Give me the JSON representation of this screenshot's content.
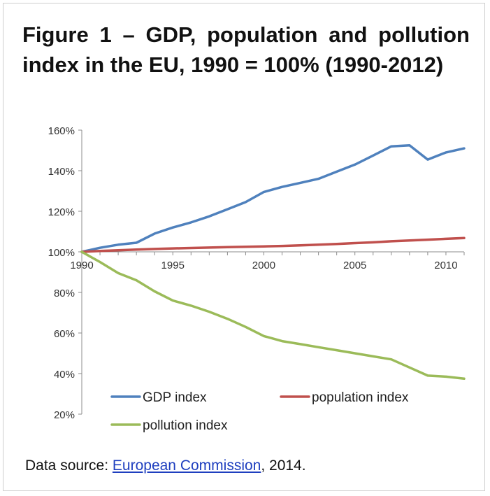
{
  "chart_data": {
    "type": "line",
    "title": "Figure 1 – GDP, population and pollution index in the EU, 1990 = 100% (1990-2012)",
    "x_ticks": [
      1990,
      1995,
      2000,
      2005,
      2010
    ],
    "y_tick_labels": [
      "160%",
      "140%",
      "120%",
      "100%",
      "80%",
      "60%",
      "40%",
      "20%"
    ],
    "ylim": [
      20,
      160
    ],
    "xlim": [
      1990,
      2011
    ],
    "legend_position": "bottom-inside",
    "series": [
      {
        "name": "GDP index",
        "color": "#4f81bd",
        "x": [
          1990,
          1991,
          1992,
          1993,
          1994,
          1995,
          1996,
          1997,
          1998,
          1999,
          2000,
          2001,
          2002,
          2003,
          2004,
          2005,
          2006,
          2007,
          2008,
          2009,
          2010,
          2011
        ],
        "values": [
          100,
          102,
          103.5,
          104.5,
          109,
          112,
          114.5,
          117.5,
          121,
          124.5,
          129.5,
          132,
          134,
          136,
          139.5,
          143,
          147.5,
          152,
          152.5,
          145.5,
          149,
          151
        ]
      },
      {
        "name": "population index",
        "color": "#c0504d",
        "x": [
          1990,
          1991,
          1992,
          1993,
          1994,
          1995,
          1996,
          1997,
          1998,
          1999,
          2000,
          2001,
          2002,
          2003,
          2004,
          2005,
          2006,
          2007,
          2008,
          2009,
          2010,
          2011
        ],
        "values": [
          100,
          100.4,
          100.8,
          101.1,
          101.4,
          101.7,
          101.9,
          102.1,
          102.3,
          102.5,
          102.7,
          102.9,
          103.2,
          103.5,
          103.9,
          104.3,
          104.7,
          105.2,
          105.6,
          106,
          106.4,
          106.8
        ]
      },
      {
        "name": "pollution index",
        "color": "#9bbb59",
        "x": [
          1990,
          1991,
          1992,
          1993,
          1994,
          1995,
          1996,
          1997,
          1998,
          1999,
          2000,
          2001,
          2002,
          2003,
          2004,
          2005,
          2006,
          2007,
          2008,
          2009,
          2010,
          2011
        ],
        "values": [
          100,
          95,
          89.5,
          86,
          80.5,
          76,
          73.5,
          70.5,
          67,
          63,
          58.5,
          56,
          54.5,
          53,
          51.5,
          50,
          48.5,
          47,
          43,
          39,
          38.5,
          37.5
        ]
      }
    ]
  },
  "source": {
    "prefix": "Data source: ",
    "link": "European Commission",
    "suffix": ", 2014."
  }
}
